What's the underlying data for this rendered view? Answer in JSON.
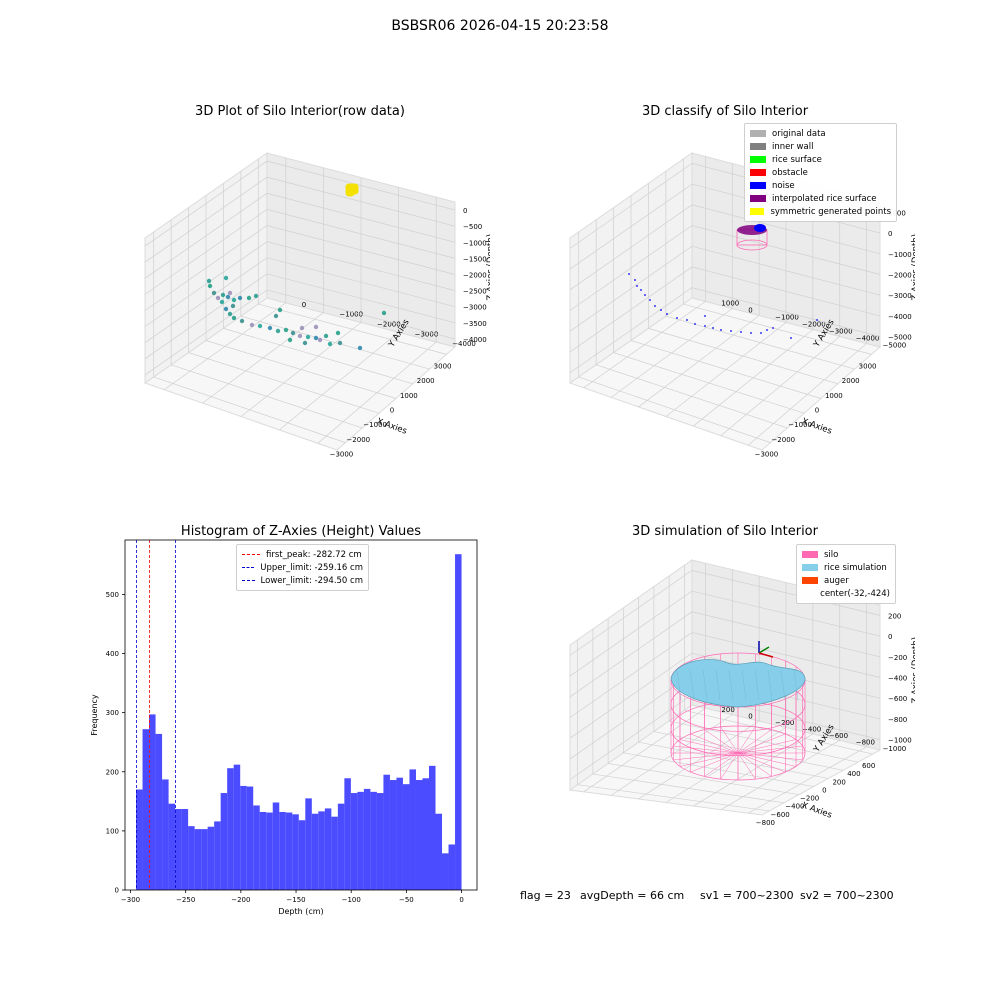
{
  "suptitle": "BSBSR06 2026-04-15 20:23:58",
  "chart_data": [
    {
      "type": "scatter",
      "panel": "top-left",
      "title": "3D Plot of Silo Interior(row data)",
      "xlabel": "X Axies",
      "ylabel": "Y Axies",
      "zlabel": "Z Axies (Depth)",
      "x_ticks": [
        "−3000",
        "−2000",
        "−1000",
        "0",
        "1000",
        "2000",
        "3000"
      ],
      "y_ticks": [
        "0",
        "−1000",
        "−2000",
        "−3000",
        "−4000"
      ],
      "z_ticks": [
        "0",
        "−500",
        "−1000",
        "−1500",
        "−2000",
        "−2500",
        "−3000",
        "−3500",
        "−4000"
      ],
      "grid": true,
      "points_note": "yellow cluster at top near z 0; teal/purple points along the floor"
    },
    {
      "type": "scatter",
      "panel": "top-right",
      "title": "3D classify of Silo Interior",
      "xlabel": "X Axies",
      "ylabel": "Y Axies",
      "zlabel": "Z Axies (Depth)",
      "x_ticks": [
        "−3000",
        "−2000",
        "−1000",
        "0",
        "1000",
        "2000",
        "3000"
      ],
      "y_ticks": [
        "1000",
        "0",
        "−1000",
        "−2000",
        "−3000",
        "−4000",
        "−5000"
      ],
      "z_ticks": [
        "1000",
        "0",
        "−1000",
        "−2000",
        "−3000",
        "−4000",
        "−5000"
      ],
      "grid": true,
      "legend_position": "top-right",
      "legend": [
        {
          "label": "original data",
          "color": "#b0b0b0"
        },
        {
          "label": "inner wall",
          "color": "#808080"
        },
        {
          "label": "rice surface",
          "color": "#00ff00"
        },
        {
          "label": "obstacle",
          "color": "#ff0000"
        },
        {
          "label": "noise",
          "color": "#0000ff"
        },
        {
          "label": "interpolated rice surface",
          "color": "#800080"
        },
        {
          "label": "symmetric generated points",
          "color": "#ffff00"
        }
      ]
    },
    {
      "type": "bar",
      "panel": "bottom-left",
      "title": "Histogram of Z-Axies (Height) Values",
      "xlabel": "Depth (cm)",
      "ylabel": "Frequency",
      "xlim": [
        -305,
        14
      ],
      "ylim": [
        0,
        592
      ],
      "x_ticks": [
        -300,
        -250,
        -200,
        -150,
        -100,
        -50,
        0
      ],
      "y_ticks": [
        0,
        100,
        200,
        300,
        400,
        500
      ],
      "bar_color": "#4b4bff",
      "bin_start": -295,
      "bin_width": 5.9,
      "values": [
        170,
        272,
        297,
        264,
        187,
        146,
        137,
        137,
        108,
        103,
        103,
        107,
        116,
        164,
        206,
        212,
        176,
        175,
        143,
        132,
        131,
        148,
        132,
        131,
        128,
        118,
        155,
        129,
        133,
        138,
        124,
        146,
        189,
        164,
        166,
        171,
        166,
        164,
        195,
        186,
        190,
        179,
        204,
        186,
        189,
        210,
        129,
        62,
        77,
        568
      ],
      "vlines": [
        {
          "label": "first_peak: -282.72 cm",
          "x": -282.72,
          "color": "#ff0000"
        },
        {
          "label": "Upper_limit: -259.16 cm",
          "x": -259.16,
          "color": "#0000cc"
        },
        {
          "label": "Lower_limit: -294.50 cm",
          "x": -294.5,
          "color": "#0000cc"
        }
      ],
      "legend_position": "top-center"
    },
    {
      "type": "surface",
      "panel": "bottom-right",
      "title": "3D simulation of Silo Interior",
      "xlabel": "X Axies",
      "ylabel": "Y Axies",
      "zlabel": "Z Axies (Depth)",
      "x_ticks": [
        "−800",
        "−600",
        "−400",
        "−200",
        "0",
        "200",
        "400",
        "600"
      ],
      "y_ticks": [
        "200",
        "0",
        "−200",
        "−400",
        "−600",
        "−800",
        "−1000"
      ],
      "z_ticks": [
        "200",
        "0",
        "−200",
        "−400",
        "−600",
        "−800",
        "−1000"
      ],
      "grid": true,
      "legend_position": "top-right",
      "legend": [
        {
          "label": "silo",
          "color": "#ff69b4"
        },
        {
          "label": "rice simulation",
          "color": "#87ceeb"
        },
        {
          "label": "auger",
          "color": "#ff4500"
        },
        {
          "label": "center(-32,-424)",
          "color": ""
        }
      ]
    }
  ],
  "footer": {
    "flag": "flag = 23",
    "avg": "avgDepth = 66 cm",
    "sv1": "sv1 = 700~2300",
    "sv2": "sv2 = 700~2300"
  }
}
